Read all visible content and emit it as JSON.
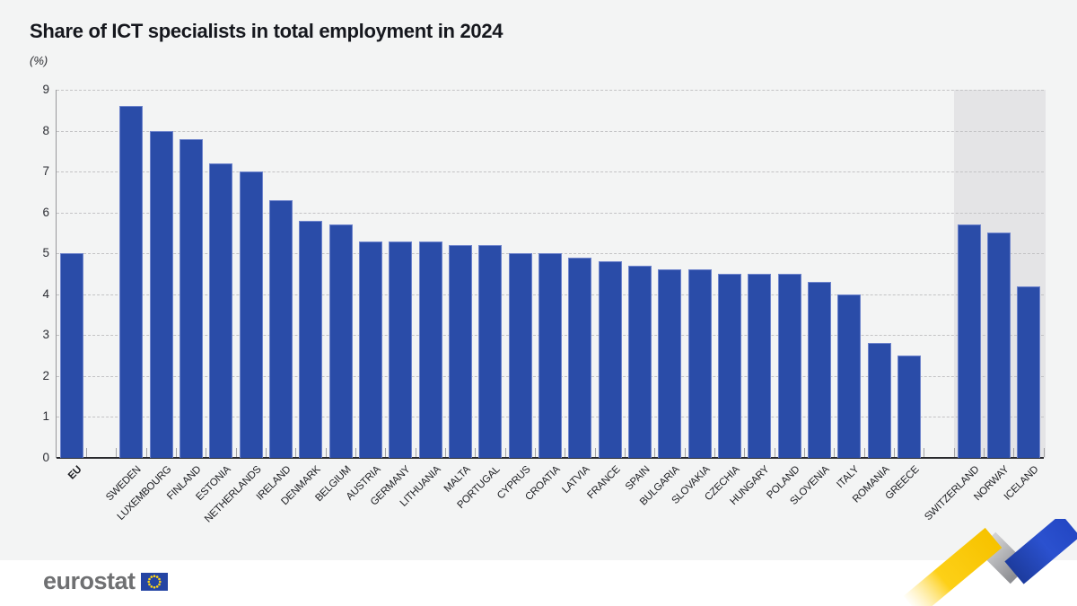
{
  "header": {
    "title": "Share of ICT specialists in total employment in 2024",
    "unit_label": "(%)"
  },
  "chart_data": {
    "type": "bar",
    "title": "Share of ICT specialists in total employment in 2024",
    "ylabel": "(%)",
    "xlabel": "",
    "ylim": [
      0,
      9
    ],
    "yticks": [
      0,
      1,
      2,
      3,
      4,
      5,
      6,
      7,
      8,
      9
    ],
    "grid": "horizontal-dashed",
    "legend": "none",
    "bar_color": "#2a4ca8",
    "efta_band_color": "#e4e4e6",
    "layout_note": "gap slot after EU aggregate and before EFTA group; EFTA bars drawn on shaded band",
    "bars": [
      {
        "label": "EU",
        "value": 5.0,
        "group": "eu-aggregate"
      },
      {
        "label": "SWEDEN",
        "value": 8.6,
        "group": "member"
      },
      {
        "label": "LUXEMBOURG",
        "value": 8.0,
        "group": "member"
      },
      {
        "label": "FINLAND",
        "value": 7.8,
        "group": "member"
      },
      {
        "label": "ESTONIA",
        "value": 7.2,
        "group": "member"
      },
      {
        "label": "NETHERLANDS",
        "value": 7.0,
        "group": "member"
      },
      {
        "label": "IRELAND",
        "value": 6.3,
        "group": "member"
      },
      {
        "label": "DENMARK",
        "value": 5.8,
        "group": "member"
      },
      {
        "label": "BELGIUM",
        "value": 5.7,
        "group": "member"
      },
      {
        "label": "AUSTRIA",
        "value": 5.3,
        "group": "member"
      },
      {
        "label": "GERMANY",
        "value": 5.3,
        "group": "member"
      },
      {
        "label": "LITHUANIA",
        "value": 5.3,
        "group": "member"
      },
      {
        "label": "MALTA",
        "value": 5.2,
        "group": "member"
      },
      {
        "label": "PORTUGAL",
        "value": 5.2,
        "group": "member"
      },
      {
        "label": "CYPRUS",
        "value": 5.0,
        "group": "member"
      },
      {
        "label": "CROATIA",
        "value": 5.0,
        "group": "member"
      },
      {
        "label": "LATVIA",
        "value": 4.9,
        "group": "member"
      },
      {
        "label": "FRANCE",
        "value": 4.8,
        "group": "member"
      },
      {
        "label": "SPAIN",
        "value": 4.7,
        "group": "member"
      },
      {
        "label": "BULGARIA",
        "value": 4.6,
        "group": "member"
      },
      {
        "label": "SLOVAKIA",
        "value": 4.6,
        "group": "member"
      },
      {
        "label": "CZECHIA",
        "value": 4.5,
        "group": "member"
      },
      {
        "label": "HUNGARY",
        "value": 4.5,
        "group": "member"
      },
      {
        "label": "POLAND",
        "value": 4.5,
        "group": "member"
      },
      {
        "label": "SLOVENIA",
        "value": 4.3,
        "group": "member"
      },
      {
        "label": "ITALY",
        "value": 4.0,
        "group": "member"
      },
      {
        "label": "ROMANIA",
        "value": 2.8,
        "group": "member"
      },
      {
        "label": "GREECE",
        "value": 2.5,
        "group": "member"
      },
      {
        "label": "SWITZERLAND",
        "value": 5.7,
        "group": "efta"
      },
      {
        "label": "NORWAY",
        "value": 5.5,
        "group": "efta"
      },
      {
        "label": "ICELAND",
        "value": 4.2,
        "group": "efta"
      }
    ]
  },
  "footer": {
    "logo_text": "eurostat"
  },
  "colors": {
    "canvas_background": "#f3f4f4",
    "footer_background": "#ffffff",
    "bar": "#2a4ca8",
    "efta_band": "#e4e4e6",
    "ribbon_yellow": "#fdd017",
    "ribbon_gray": "#a9aaad",
    "ribbon_blue": "#2b51cf",
    "eu_flag_blue": "#2444a3",
    "eu_flag_stars": "#ffd617"
  }
}
